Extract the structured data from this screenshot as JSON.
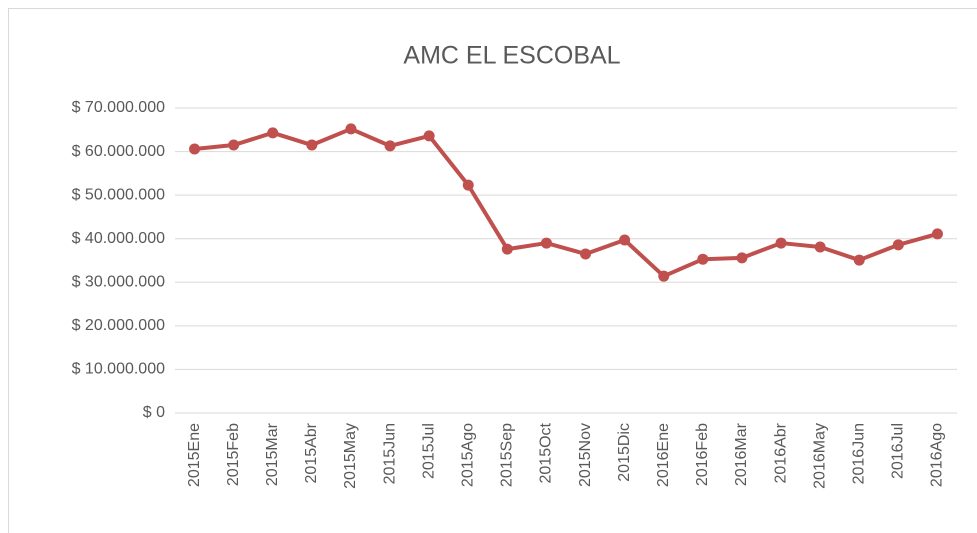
{
  "chart_data": {
    "type": "line",
    "title": "AMC EL ESCOBAL",
    "categories": [
      "2015Ene",
      "2015Feb",
      "2015Mar",
      "2015Abr",
      "2015May",
      "2015Jun",
      "2015Jul",
      "2015Ago",
      "2015Sep",
      "2015Oct",
      "2015Nov",
      "2015Dic",
      "2016Ene",
      "2016Feb",
      "2016Mar",
      "2016Abr",
      "2016May",
      "2016Jun",
      "2016Jul",
      "2016Ago"
    ],
    "series": [
      {
        "color": "#c0504d",
        "values": [
          60600000,
          61500000,
          64300000,
          61500000,
          65200000,
          61300000,
          63600000,
          52300000,
          37600000,
          39000000,
          36500000,
          39700000,
          31400000,
          35300000,
          35600000,
          39000000,
          38100000,
          35100000,
          38600000,
          41100000
        ]
      }
    ],
    "ylim": [
      0,
      70000000
    ],
    "yticks": [
      {
        "value": 0,
        "label": "$ 0"
      },
      {
        "value": 10000000,
        "label": "$ 10.000.000"
      },
      {
        "value": 20000000,
        "label": "$ 20.000.000"
      },
      {
        "value": 30000000,
        "label": "$ 30.000.000"
      },
      {
        "value": 40000000,
        "label": "$ 40.000.000"
      },
      {
        "value": 50000000,
        "label": "$ 50.000.000"
      },
      {
        "value": 60000000,
        "label": "$ 60.000.000"
      },
      {
        "value": 70000000,
        "label": "$ 70.000.000"
      }
    ],
    "grid": true
  }
}
